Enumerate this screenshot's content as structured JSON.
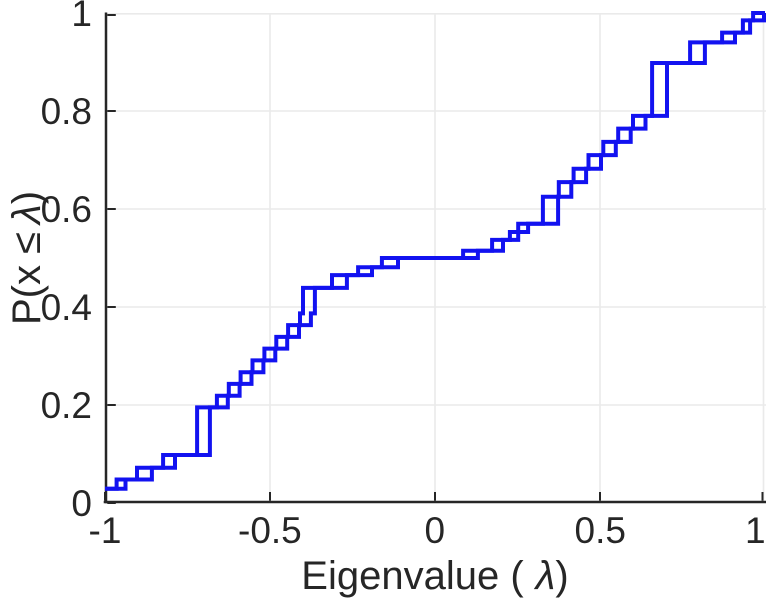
{
  "chart_data": {
    "type": "line",
    "line_style": "ecdf-steps",
    "title": "",
    "xlabel": {
      "pre": "Eigenvalue (",
      "lambda": "λ",
      "post": ")"
    },
    "ylabel": {
      "pre": "P(x ≤",
      "lambda": "λ",
      "post": ")"
    },
    "xlim": [
      -1,
      1
    ],
    "ylim": [
      0,
      1
    ],
    "grid": true,
    "legend": "none",
    "x_ticks": [
      {
        "v": -1,
        "label": "-1"
      },
      {
        "v": -0.5,
        "label": "-0.5"
      },
      {
        "v": 0,
        "label": "0"
      },
      {
        "v": 0.5,
        "label": "0.5"
      },
      {
        "v": 1,
        "label": "1"
      }
    ],
    "y_ticks": [
      {
        "v": 0,
        "label": "0"
      },
      {
        "v": 0.2,
        "label": "0.2"
      },
      {
        "v": 0.4,
        "label": "0.4"
      },
      {
        "v": 0.6,
        "label": "0.6"
      },
      {
        "v": 0.8,
        "label": "0.8"
      },
      {
        "v": 1,
        "label": "1"
      }
    ],
    "colors": {
      "line": "#1212f0",
      "grid": "#eaeaea",
      "axis": "#262626",
      "background": "#ffffff"
    },
    "line_width": 4,
    "series": [
      {
        "name": "ecdf-curve-1",
        "points": [
          [
            -1.0,
            0.029
          ],
          [
            -0.965,
            0.048
          ],
          [
            -0.903,
            0.072
          ],
          [
            -0.824,
            0.098
          ],
          [
            -0.721,
            0.195
          ],
          [
            -0.661,
            0.219
          ],
          [
            -0.625,
            0.243
          ],
          [
            -0.589,
            0.267
          ],
          [
            -0.553,
            0.291
          ],
          [
            -0.517,
            0.315
          ],
          [
            -0.481,
            0.339
          ],
          [
            -0.445,
            0.363
          ],
          [
            -0.409,
            0.387
          ],
          [
            -0.4,
            0.439
          ],
          [
            -0.312,
            0.465
          ],
          [
            -0.233,
            0.481
          ],
          [
            -0.161,
            0.5
          ],
          [
            0.085,
            0.515
          ],
          [
            0.173,
            0.537
          ],
          [
            0.227,
            0.553
          ],
          [
            0.252,
            0.57
          ],
          [
            0.327,
            0.625
          ],
          [
            0.375,
            0.655
          ],
          [
            0.42,
            0.682
          ],
          [
            0.465,
            0.71
          ],
          [
            0.51,
            0.737
          ],
          [
            0.555,
            0.764
          ],
          [
            0.6,
            0.79
          ],
          [
            0.658,
            0.898
          ],
          [
            0.773,
            0.94
          ],
          [
            0.87,
            0.96
          ],
          [
            0.933,
            0.985
          ],
          [
            0.964,
            1.0
          ]
        ]
      },
      {
        "name": "ecdf-curve-2",
        "points": [
          [
            -1.0,
            0.029
          ],
          [
            -0.938,
            0.048
          ],
          [
            -0.858,
            0.072
          ],
          [
            -0.788,
            0.098
          ],
          [
            -0.682,
            0.195
          ],
          [
            -0.628,
            0.219
          ],
          [
            -0.592,
            0.243
          ],
          [
            -0.556,
            0.267
          ],
          [
            -0.52,
            0.291
          ],
          [
            -0.484,
            0.315
          ],
          [
            -0.448,
            0.339
          ],
          [
            -0.412,
            0.363
          ],
          [
            -0.376,
            0.387
          ],
          [
            -0.364,
            0.439
          ],
          [
            -0.267,
            0.465
          ],
          [
            -0.191,
            0.481
          ],
          [
            -0.112,
            0.5
          ],
          [
            0.13,
            0.515
          ],
          [
            0.206,
            0.537
          ],
          [
            0.252,
            0.553
          ],
          [
            0.282,
            0.57
          ],
          [
            0.373,
            0.625
          ],
          [
            0.413,
            0.655
          ],
          [
            0.458,
            0.682
          ],
          [
            0.503,
            0.71
          ],
          [
            0.548,
            0.737
          ],
          [
            0.593,
            0.764
          ],
          [
            0.638,
            0.79
          ],
          [
            0.703,
            0.898
          ],
          [
            0.818,
            0.94
          ],
          [
            0.909,
            0.96
          ],
          [
            0.955,
            0.985
          ],
          [
            0.997,
            1.0
          ]
        ]
      }
    ]
  }
}
